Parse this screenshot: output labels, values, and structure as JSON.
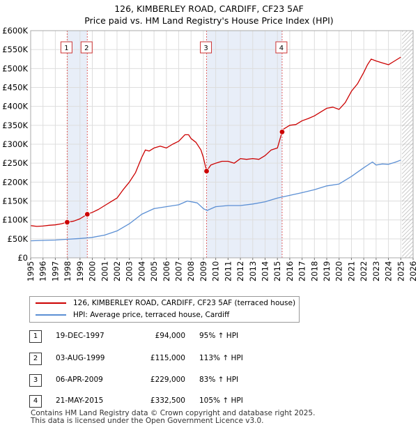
{
  "title": {
    "line1": "126, KIMBERLEY ROAD, CARDIFF, CF23 5AF",
    "line2": "Price paid vs. HM Land Registry's House Price Index (HPI)"
  },
  "chart_data": {
    "type": "line",
    "xlim": [
      1995,
      2026
    ],
    "ylim": [
      0,
      600000
    ],
    "y_ticks": [
      0,
      50000,
      100000,
      150000,
      200000,
      250000,
      300000,
      350000,
      400000,
      450000,
      500000,
      550000,
      600000
    ],
    "y_tick_labels": [
      "£0",
      "£50K",
      "£100K",
      "£150K",
      "£200K",
      "£250K",
      "£300K",
      "£350K",
      "£400K",
      "£450K",
      "£500K",
      "£550K",
      "£600K"
    ],
    "x_ticks": [
      1995,
      1996,
      1997,
      1998,
      1999,
      2000,
      2001,
      2002,
      2003,
      2004,
      2005,
      2006,
      2007,
      2008,
      2009,
      2010,
      2011,
      2012,
      2013,
      2014,
      2015,
      2016,
      2017,
      2018,
      2019,
      2020,
      2021,
      2022,
      2023,
      2024,
      2025,
      2026
    ],
    "x_tick_labels": [
      "1995",
      "1996",
      "1997",
      "1998",
      "1999",
      "2000",
      "2001",
      "2002",
      "2003",
      "2004",
      "2005",
      "2006",
      "2007",
      "2008",
      "2009",
      "2010",
      "2011",
      "2012",
      "2013",
      "2014",
      "2015",
      "2016",
      "2017",
      "2018",
      "2019",
      "2020",
      "2021",
      "2022",
      "2023",
      "2024",
      "2025",
      "2026"
    ],
    "grid": true,
    "forecast_start": 2025.1,
    "series": [
      {
        "name": "126, KIMBERLEY ROAD, CARDIFF, CF23 5AF (terraced house)",
        "color": "#cc0000",
        "x": [
          1995.0,
          1995.5,
          1996.0,
          1996.5,
          1997.0,
          1997.5,
          1997.96,
          1998.5,
          1999.0,
          1999.59,
          2000.0,
          2000.5,
          2001.0,
          2001.5,
          2002.0,
          2002.5,
          2003.0,
          2003.5,
          2004.0,
          2004.3,
          2004.6,
          2005.0,
          2005.5,
          2006.0,
          2006.5,
          2007.0,
          2007.5,
          2007.8,
          2008.0,
          2008.4,
          2008.8,
          2009.0,
          2009.26,
          2009.6,
          2010.0,
          2010.5,
          2011.0,
          2011.5,
          2012.0,
          2012.5,
          2013.0,
          2013.5,
          2014.0,
          2014.5,
          2015.0,
          2015.38,
          2015.5,
          2016.0,
          2016.5,
          2017.0,
          2017.5,
          2018.0,
          2018.5,
          2019.0,
          2019.5,
          2020.0,
          2020.5,
          2021.0,
          2021.5,
          2022.0,
          2022.3,
          2022.6,
          2023.0,
          2023.5,
          2024.0,
          2024.5,
          2025.0
        ],
        "y": [
          85000,
          83000,
          84000,
          86000,
          87000,
          90000,
          94000,
          97000,
          103000,
          115000,
          120000,
          128000,
          138000,
          148000,
          158000,
          180000,
          200000,
          225000,
          265000,
          285000,
          282000,
          290000,
          295000,
          290000,
          300000,
          308000,
          325000,
          325000,
          315000,
          305000,
          285000,
          265000,
          229000,
          245000,
          250000,
          255000,
          255000,
          250000,
          262000,
          260000,
          262000,
          260000,
          270000,
          285000,
          290000,
          332500,
          340000,
          350000,
          352000,
          362000,
          368000,
          375000,
          385000,
          395000,
          398000,
          392000,
          410000,
          440000,
          460000,
          490000,
          510000,
          525000,
          520000,
          515000,
          510000,
          520000,
          530000
        ]
      },
      {
        "name": "HPI: Average price, terraced house, Cardiff",
        "color": "#5b8fd4",
        "x": [
          1995.0,
          1996.0,
          1997.0,
          1998.0,
          1999.0,
          2000.0,
          2001.0,
          2002.0,
          2003.0,
          2004.0,
          2005.0,
          2006.0,
          2007.0,
          2007.7,
          2008.5,
          2009.0,
          2009.3,
          2010.0,
          2011.0,
          2012.0,
          2013.0,
          2014.0,
          2015.0,
          2016.0,
          2017.0,
          2018.0,
          2019.0,
          2020.0,
          2021.0,
          2022.0,
          2022.7,
          2023.0,
          2023.5,
          2024.0,
          2024.5,
          2025.0
        ],
        "y": [
          45000,
          46000,
          47000,
          49000,
          51000,
          54000,
          60000,
          71000,
          90000,
          115000,
          130000,
          135000,
          140000,
          150000,
          145000,
          130000,
          125000,
          135000,
          138000,
          138000,
          142000,
          148000,
          158000,
          165000,
          172000,
          180000,
          190000,
          195000,
          215000,
          238000,
          253000,
          245000,
          248000,
          247000,
          252000,
          258000
        ]
      }
    ],
    "sales": [
      {
        "label": "1",
        "x": 1997.96,
        "y": 94000
      },
      {
        "label": "2",
        "x": 1999.59,
        "y": 115000
      },
      {
        "label": "3",
        "x": 2009.26,
        "y": 229000
      },
      {
        "label": "4",
        "x": 2015.38,
        "y": 332500
      }
    ]
  },
  "legend": {
    "property": "126, KIMBERLEY ROAD, CARDIFF, CF23 5AF (terraced house)",
    "hpi": "HPI: Average price, terraced house, Cardiff",
    "property_color": "#cc0000",
    "hpi_color": "#5b8fd4"
  },
  "transactions": [
    {
      "num": "1",
      "date": "19-DEC-1997",
      "price": "£94,000",
      "hpi": "95% ↑ HPI"
    },
    {
      "num": "2",
      "date": "03-AUG-1999",
      "price": "£115,000",
      "hpi": "113% ↑ HPI"
    },
    {
      "num": "3",
      "date": "06-APR-2009",
      "price": "£229,000",
      "hpi": "83% ↑ HPI"
    },
    {
      "num": "4",
      "date": "21-MAY-2015",
      "price": "£332,500",
      "hpi": "105% ↑ HPI"
    }
  ],
  "footer": {
    "line1": "Contains HM Land Registry data © Crown copyright and database right 2025.",
    "line2": "This data is licensed under the Open Government Licence v3.0."
  }
}
